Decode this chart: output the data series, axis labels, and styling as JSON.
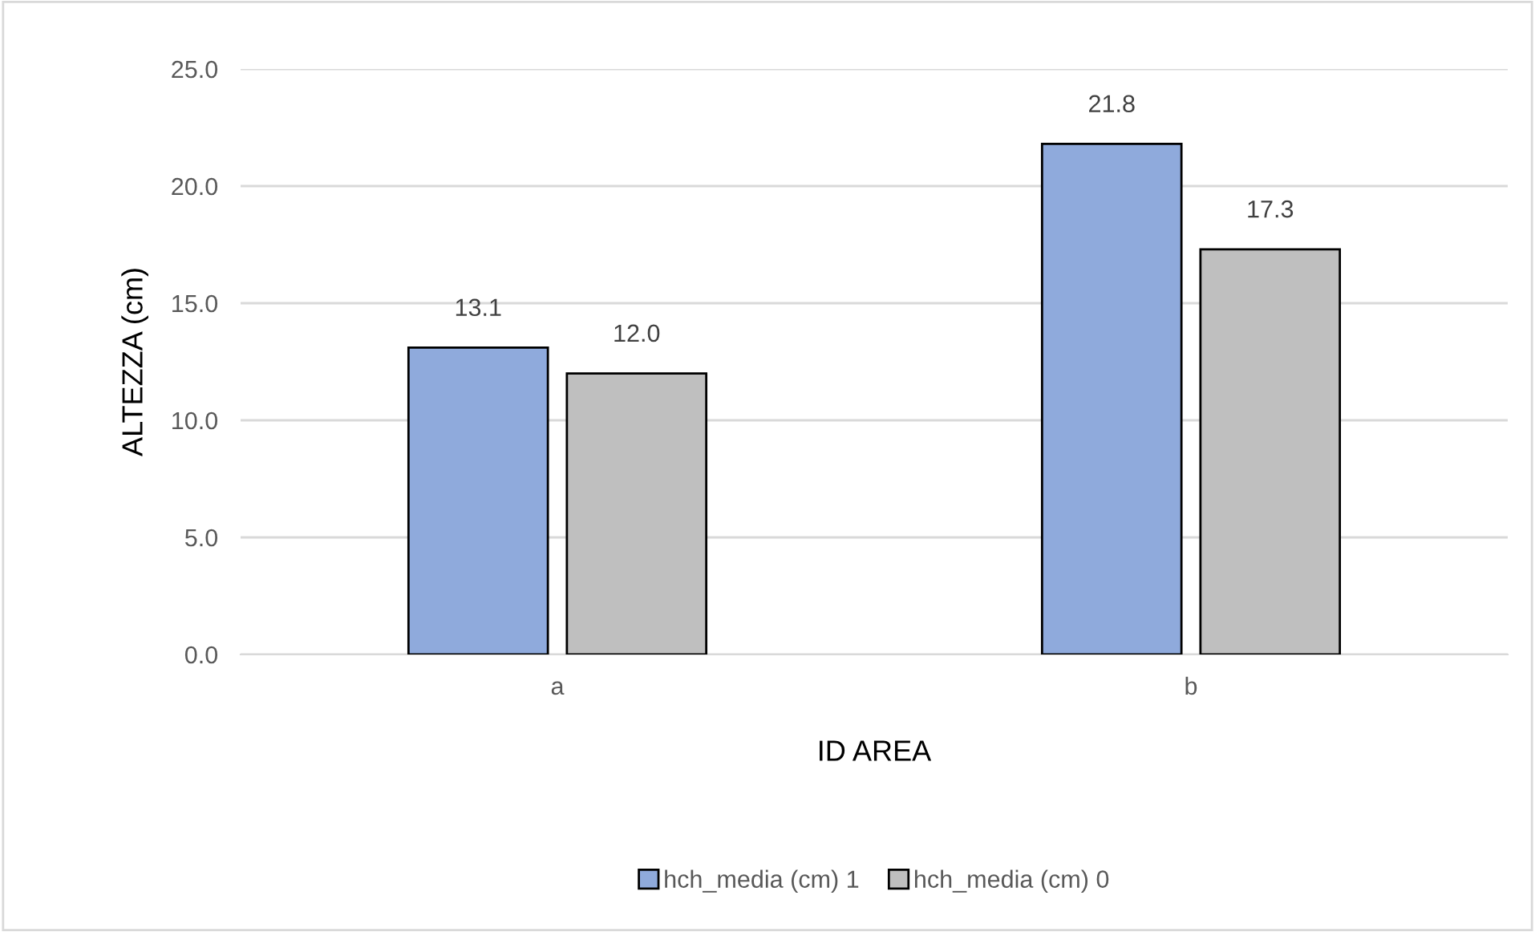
{
  "chart_data": {
    "type": "bar",
    "xlabel": "ID AREA",
    "ylabel": "ALTEZZA (cm)",
    "categories": [
      "a",
      "b"
    ],
    "series": [
      {
        "name": "hch_media (cm) 1",
        "color": "#8faadc",
        "values": [
          13.1,
          21.8
        ],
        "value_labels": [
          "13.1",
          "21.8"
        ]
      },
      {
        "name": "hch_media (cm) 0",
        "color": "#bfbfbf",
        "values": [
          12.0,
          17.3
        ],
        "value_labels": [
          "12.0",
          "17.3"
        ]
      }
    ],
    "ylim": [
      0,
      25
    ],
    "yticks": [
      {
        "value": 0,
        "label": "0.0"
      },
      {
        "value": 5,
        "label": "5.0"
      },
      {
        "value": 10,
        "label": "10.0"
      },
      {
        "value": 15,
        "label": "15.0"
      },
      {
        "value": 20,
        "label": "20.0"
      },
      {
        "value": 25,
        "label": "25.0"
      }
    ],
    "grid": "y",
    "legend": "bottom"
  }
}
